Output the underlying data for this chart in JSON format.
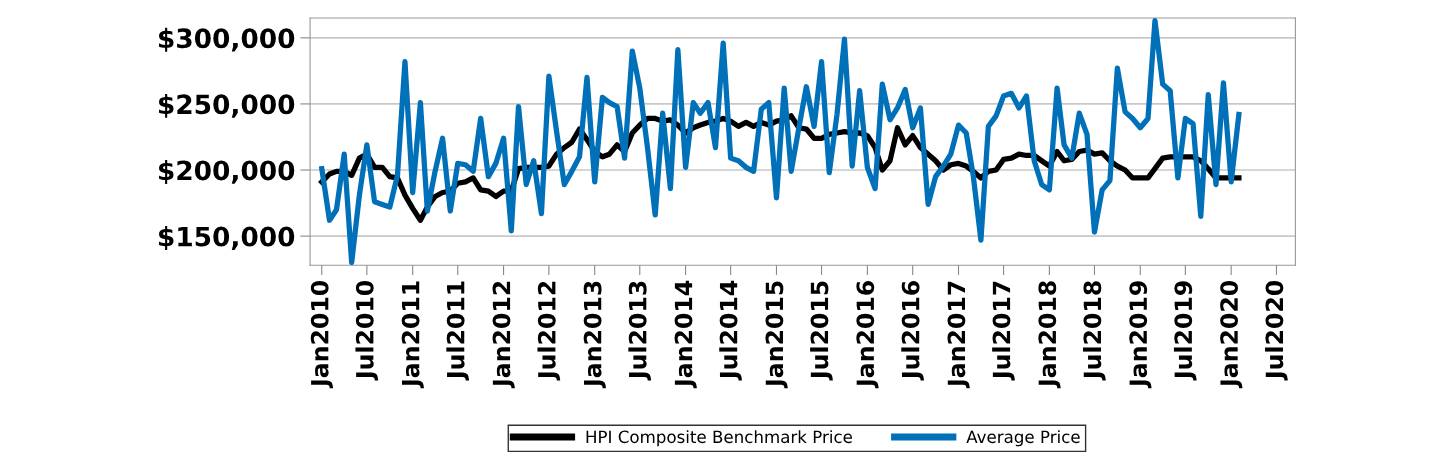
{
  "chart_data": {
    "type": "line",
    "x": [
      "2010-01",
      "2010-02",
      "2010-03",
      "2010-04",
      "2010-05",
      "2010-06",
      "2010-07",
      "2010-08",
      "2010-09",
      "2010-10",
      "2010-11",
      "2010-12",
      "2011-01",
      "2011-02",
      "2011-03",
      "2011-04",
      "2011-05",
      "2011-06",
      "2011-07",
      "2011-08",
      "2011-09",
      "2011-10",
      "2011-11",
      "2011-12",
      "2012-01",
      "2012-02",
      "2012-03",
      "2012-04",
      "2012-05",
      "2012-06",
      "2012-07",
      "2012-08",
      "2012-09",
      "2012-10",
      "2012-11",
      "2012-12",
      "2013-01",
      "2013-02",
      "2013-03",
      "2013-04",
      "2013-05",
      "2013-06",
      "2013-07",
      "2013-08",
      "2013-09",
      "2013-10",
      "2013-11",
      "2013-12",
      "2014-01",
      "2014-02",
      "2014-03",
      "2014-04",
      "2014-05",
      "2014-06",
      "2014-07",
      "2014-08",
      "2014-09",
      "2014-10",
      "2014-11",
      "2014-12",
      "2015-01",
      "2015-02",
      "2015-03",
      "2015-04",
      "2015-05",
      "2015-06",
      "2015-07",
      "2015-08",
      "2015-09",
      "2015-10",
      "2015-11",
      "2015-12",
      "2016-01",
      "2016-02",
      "2016-03",
      "2016-04",
      "2016-05",
      "2016-06",
      "2016-07",
      "2016-08",
      "2016-09",
      "2016-10",
      "2016-11",
      "2016-12",
      "2017-01",
      "2017-02",
      "2017-03",
      "2017-04",
      "2017-05",
      "2017-06",
      "2017-07",
      "2017-08",
      "2017-09",
      "2017-10",
      "2017-11",
      "2017-12",
      "2018-01",
      "2018-02",
      "2018-03",
      "2018-04",
      "2018-05",
      "2018-06",
      "2018-07",
      "2018-08",
      "2018-09",
      "2018-10",
      "2018-11",
      "2018-12",
      "2019-01",
      "2019-02",
      "2019-03",
      "2019-04",
      "2019-05",
      "2019-06",
      "2019-07",
      "2019-08",
      "2019-09",
      "2019-10",
      "2019-11",
      "2019-12",
      "2020-01",
      "2020-02"
    ],
    "series": [
      {
        "name": "HPI Composite Benchmark Price",
        "color": "#000000",
        "values": [
          191000,
          197000,
          199000,
          199000,
          196000,
          209000,
          212000,
          202000,
          202000,
          195000,
          194000,
          181000,
          171000,
          162000,
          172000,
          180000,
          183000,
          184000,
          190000,
          191000,
          194000,
          185000,
          184000,
          180000,
          184000,
          184000,
          201000,
          202000,
          202000,
          202000,
          203000,
          212000,
          217000,
          221000,
          231000,
          223000,
          214000,
          210000,
          212000,
          219000,
          214000,
          228000,
          234000,
          239000,
          239000,
          237000,
          238000,
          234000,
          228000,
          232000,
          234000,
          236000,
          237000,
          239000,
          237000,
          233000,
          236000,
          233000,
          236000,
          234000,
          237000,
          238000,
          241000,
          232000,
          231000,
          224000,
          224000,
          227000,
          228000,
          229000,
          228000,
          228000,
          226000,
          217000,
          200000,
          207000,
          232000,
          219000,
          226000,
          217000,
          212000,
          207000,
          200000,
          204000,
          205000,
          203000,
          199000,
          194000,
          199000,
          200000,
          208000,
          209000,
          212000,
          211000,
          211000,
          207000,
          203000,
          214000,
          207000,
          208000,
          214000,
          215000,
          212000,
          213000,
          207000,
          203000,
          200000,
          194000,
          194000,
          194000,
          201000,
          209000,
          210000,
          210000,
          210000,
          210000,
          207000,
          201000,
          194000,
          194000,
          194000,
          194000
        ]
      },
      {
        "name": "Average Price",
        "color": "#0070b8",
        "values": [
          201000,
          162000,
          170000,
          212000,
          130000,
          181000,
          219000,
          176000,
          174000,
          172000,
          196000,
          282000,
          183000,
          251000,
          169000,
          199000,
          224000,
          169000,
          205000,
          204000,
          199000,
          239000,
          195000,
          205000,
          224000,
          154000,
          248000,
          189000,
          207000,
          167000,
          271000,
          229000,
          189000,
          199000,
          210000,
          270000,
          191000,
          255000,
          251000,
          248000,
          209000,
          290000,
          262000,
          217000,
          166000,
          243000,
          186000,
          291000,
          202000,
          251000,
          243000,
          251000,
          217000,
          296000,
          209000,
          207000,
          202000,
          199000,
          246000,
          251000,
          179000,
          262000,
          199000,
          232000,
          263000,
          233000,
          282000,
          198000,
          242000,
          299000,
          203000,
          260000,
          202000,
          186000,
          265000,
          238000,
          247000,
          261000,
          232000,
          247000,
          174000,
          195000,
          203000,
          212000,
          234000,
          228000,
          196000,
          147000,
          233000,
          241000,
          256000,
          258000,
          247000,
          256000,
          207000,
          189000,
          185000,
          262000,
          219000,
          209000,
          243000,
          227000,
          153000,
          185000,
          192000,
          277000,
          244000,
          239000,
          232000,
          239000,
          313000,
          265000,
          260000,
          194000,
          239000,
          235000,
          165000,
          257000,
          189000,
          266000,
          191000,
          242000
        ]
      }
    ],
    "ylim": [
      128000,
      315000
    ],
    "yticks": [
      {
        "value": 150000,
        "label": "$150,000"
      },
      {
        "value": 200000,
        "label": "$200,000"
      },
      {
        "value": 250000,
        "label": "$250,000"
      },
      {
        "value": 300000,
        "label": "$300,000"
      }
    ],
    "xlim": [
      "2009-11-15",
      "2020-09-15"
    ],
    "xticks": [
      {
        "value": "2010-01",
        "label": "Jan2010"
      },
      {
        "value": "2010-07",
        "label": "Jul2010"
      },
      {
        "value": "2011-01",
        "label": "Jan2011"
      },
      {
        "value": "2011-07",
        "label": "Jul2011"
      },
      {
        "value": "2012-01",
        "label": "Jan2012"
      },
      {
        "value": "2012-07",
        "label": "Jul2012"
      },
      {
        "value": "2013-01",
        "label": "Jan2013"
      },
      {
        "value": "2013-07",
        "label": "Jul2013"
      },
      {
        "value": "2014-01",
        "label": "Jan2014"
      },
      {
        "value": "2014-07",
        "label": "Jul2014"
      },
      {
        "value": "2015-01",
        "label": "Jan2015"
      },
      {
        "value": "2015-07",
        "label": "Jul2015"
      },
      {
        "value": "2016-01",
        "label": "Jan2016"
      },
      {
        "value": "2016-07",
        "label": "Jul2016"
      },
      {
        "value": "2017-01",
        "label": "Jan2017"
      },
      {
        "value": "2017-07",
        "label": "Jul2017"
      },
      {
        "value": "2018-01",
        "label": "Jan2018"
      },
      {
        "value": "2018-07",
        "label": "Jul2018"
      },
      {
        "value": "2019-01",
        "label": "Jan2019"
      },
      {
        "value": "2019-07",
        "label": "Jul2019"
      },
      {
        "value": "2020-01",
        "label": "Jan2020"
      },
      {
        "value": "2020-07",
        "label": "Jul2020"
      }
    ],
    "grid": "y",
    "legend": "bottom",
    "marker": "none",
    "line_style": "solid"
  }
}
